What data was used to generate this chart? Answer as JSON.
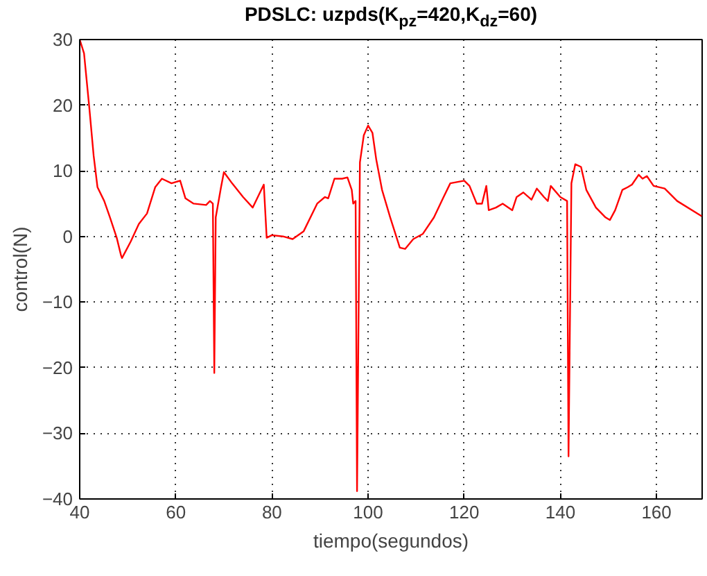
{
  "chart_data": {
    "type": "line",
    "title": "PDSLC: uzpds(K$_{pz}$=420,K$_{dz}$=60)",
    "xlabel": "tiempo(segundos)",
    "ylabel": "control(N)",
    "xlim": [
      40,
      169.5
    ],
    "ylim": [
      -40,
      30
    ],
    "xticks": [
      40,
      60,
      80,
      100,
      120,
      140,
      160
    ],
    "yticks": [
      -40,
      -30,
      -20,
      -10,
      0,
      10,
      20,
      30
    ],
    "grid": true,
    "marker": "none",
    "line_style": "solid",
    "series": [
      {
        "color": "#ff0000",
        "x": [
          40,
          40.9,
          42,
          42.9,
          43.7,
          45.1,
          46.3,
          47.7,
          48.6,
          48.8,
          50.6,
          52.3,
          54,
          55.7,
          57.1,
          59.1,
          60.9,
          62,
          63.7,
          66.3,
          67.1,
          67.7,
          68,
          68.3,
          69.4,
          70,
          71.7,
          74,
          76,
          78.3,
          78.9,
          80,
          82.3,
          84.3,
          86.6,
          89.4,
          91,
          91.7,
          93,
          94.6,
          95.7,
          96.6,
          96.9,
          97.4,
          97.7,
          98.3,
          99.1,
          100,
          100.9,
          101.7,
          102.9,
          104.6,
          106.6,
          107.7,
          109.4,
          111.4,
          113.7,
          115.7,
          117.1,
          120,
          121.1,
          122.6,
          123.7,
          124.6,
          125.1,
          126.6,
          128,
          130,
          130.9,
          132.3,
          134,
          135.1,
          136.6,
          137.4,
          138,
          140,
          141.4,
          141.7,
          142.3,
          143.1,
          144.3,
          145.4,
          147.4,
          149.4,
          150.3,
          151.4,
          152.9,
          154,
          154.9,
          156.3,
          157.1,
          158,
          159.4,
          161.7,
          164.3,
          169.4
        ],
        "values": [
          30,
          27.9,
          19.6,
          12.3,
          7.5,
          5.4,
          2.9,
          -0.2,
          -2.9,
          -3.3,
          -0.8,
          1.9,
          3.5,
          7.5,
          8.8,
          8.1,
          8.5,
          5.8,
          5,
          4.8,
          5.4,
          5,
          -20.8,
          2.9,
          7.5,
          9.8,
          8.1,
          6,
          4.4,
          7.9,
          -0.2,
          0.2,
          0,
          -0.4,
          0.8,
          5,
          6,
          5.8,
          8.8,
          8.8,
          9,
          7.1,
          5,
          5.4,
          -38.8,
          11.3,
          15.4,
          16.9,
          15.8,
          11.7,
          7.1,
          2.9,
          -1.7,
          -1.9,
          -0.4,
          0.4,
          2.9,
          6,
          8.1,
          8.5,
          7.7,
          5,
          5,
          7.7,
          4,
          4.4,
          5,
          4,
          6,
          6.7,
          5.6,
          7.3,
          6,
          5.4,
          7.7,
          6,
          5.4,
          -33.5,
          8.1,
          11,
          10.6,
          7.1,
          4.4,
          2.9,
          2.5,
          4,
          7.1,
          7.5,
          7.9,
          9.4,
          8.8,
          9.2,
          7.7,
          7.3,
          5.4,
          3.1
        ]
      }
    ]
  }
}
